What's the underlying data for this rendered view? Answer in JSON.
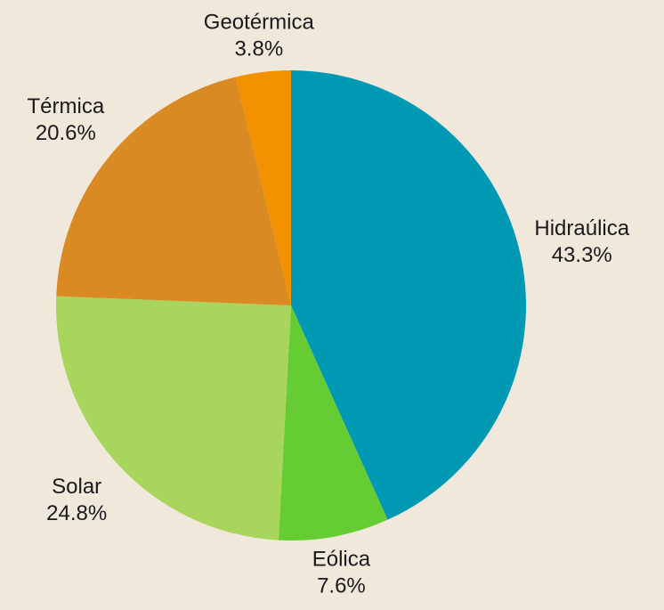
{
  "chart_data": {
    "type": "pie",
    "categories": [
      "Hidraúlica",
      "Eólica",
      "Solar",
      "Térmica",
      "Geotérmica"
    ],
    "values": [
      43.3,
      7.6,
      24.8,
      20.6,
      3.8
    ],
    "value_labels": [
      "43.3%",
      "7.6%",
      "24.8%",
      "20.6%",
      "3.8%"
    ],
    "colors": [
      "#0099b4",
      "#66cc33",
      "#a8d65c",
      "#d98a22",
      "#f39200"
    ]
  }
}
